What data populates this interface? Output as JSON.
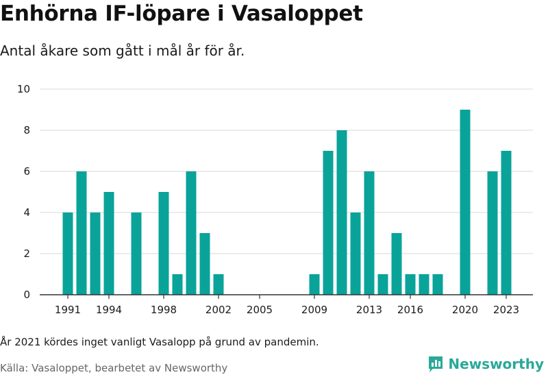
{
  "header": {
    "title": "Enhörna IF-löpare i Vasaloppet",
    "subtitle": "Antal åkare som gått i mål år för år."
  },
  "footer": {
    "note": "År 2021 kördes inget vanligt Vasalopp på grund av pandemin.",
    "source": "Källa: Vasaloppet, bearbetet av Newsworthy",
    "brand": "Newsworthy"
  },
  "colors": {
    "bar": "#0aa39a",
    "brand": "#2aa898",
    "grid": "#d9d9d9",
    "axis": "#333333"
  },
  "chart_data": {
    "type": "bar",
    "title": "Enhörna IF-löpare i Vasaloppet",
    "subtitle": "Antal åkare som gått i mål år för år.",
    "xlabel": "",
    "ylabel": "",
    "ylim": [
      0,
      10
    ],
    "yticks": [
      0,
      2,
      4,
      6,
      8,
      10
    ],
    "xticks": [
      1991,
      1994,
      1998,
      2002,
      2005,
      2009,
      2013,
      2016,
      2020,
      2023
    ],
    "x_range": [
      1990,
      2024
    ],
    "grid": true,
    "categories": [
      1991,
      1992,
      1993,
      1994,
      1995,
      1996,
      1997,
      1998,
      1999,
      2000,
      2001,
      2002,
      2003,
      2004,
      2005,
      2006,
      2007,
      2008,
      2009,
      2010,
      2011,
      2012,
      2013,
      2014,
      2015,
      2016,
      2017,
      2018,
      2019,
      2020,
      2021,
      2022,
      2023
    ],
    "values": [
      4,
      6,
      4,
      5,
      0,
      4,
      0,
      5,
      1,
      6,
      3,
      1,
      0,
      0,
      0,
      0,
      0,
      0,
      1,
      7,
      8,
      4,
      6,
      1,
      3,
      1,
      1,
      1,
      0,
      9,
      0,
      6,
      7
    ]
  }
}
